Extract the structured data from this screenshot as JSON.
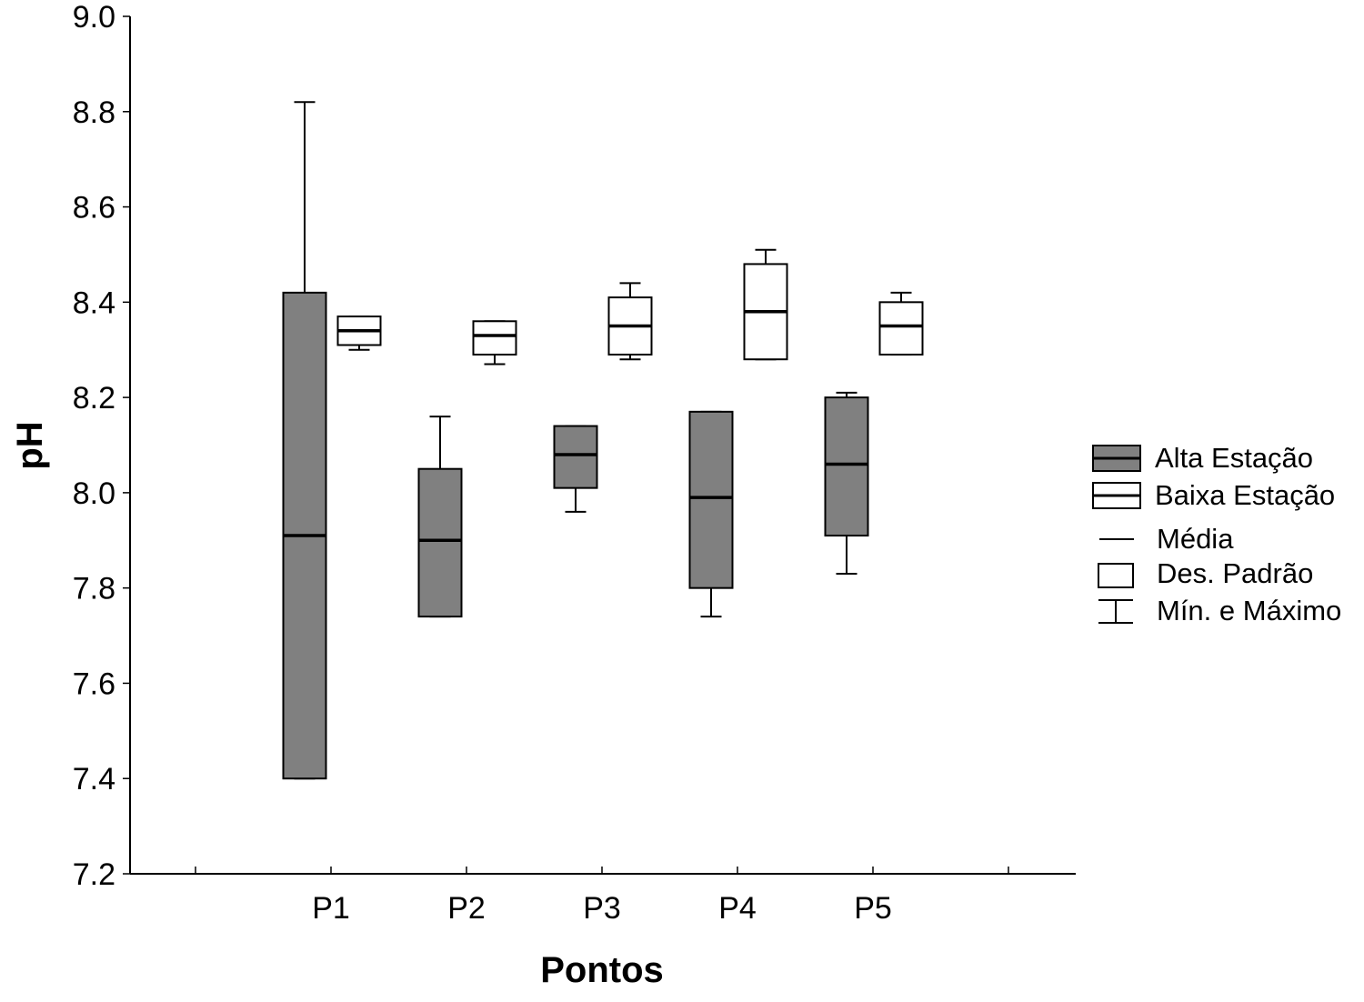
{
  "chart_data": {
    "type": "box",
    "xlabel": "Pontos",
    "ylabel": "pH",
    "ylim": [
      7.2,
      9.0
    ],
    "yticks": [
      "7.2",
      "7.4",
      "7.6",
      "7.8",
      "8.0",
      "8.2",
      "8.4",
      "8.6",
      "8.8",
      "9.0"
    ],
    "categories": [
      "P1",
      "P2",
      "P3",
      "P4",
      "P5"
    ],
    "series": [
      {
        "name": "Alta Estação",
        "color": "#808080",
        "boxes": [
          {
            "category": "P1",
            "min": 7.4,
            "sd_low": 7.4,
            "mean": 7.91,
            "sd_high": 8.42,
            "max": 8.82
          },
          {
            "category": "P2",
            "min": 7.74,
            "sd_low": 7.74,
            "mean": 7.9,
            "sd_high": 8.05,
            "max": 8.16
          },
          {
            "category": "P3",
            "min": 7.96,
            "sd_low": 8.01,
            "mean": 8.08,
            "sd_high": 8.14,
            "max": 8.14
          },
          {
            "category": "P4",
            "min": 7.74,
            "sd_low": 7.8,
            "mean": 7.99,
            "sd_high": 8.17,
            "max": 8.17
          },
          {
            "category": "P5",
            "min": 7.83,
            "sd_low": 7.91,
            "mean": 8.06,
            "sd_high": 8.2,
            "max": 8.21
          }
        ]
      },
      {
        "name": "Baixa Estação",
        "color": "#ffffff",
        "boxes": [
          {
            "category": "P1",
            "min": 8.3,
            "sd_low": 8.31,
            "mean": 8.34,
            "sd_high": 8.37,
            "max": 8.37
          },
          {
            "category": "P2",
            "min": 8.27,
            "sd_low": 8.29,
            "mean": 8.33,
            "sd_high": 8.36,
            "max": 8.36
          },
          {
            "category": "P3",
            "min": 8.28,
            "sd_low": 8.29,
            "mean": 8.35,
            "sd_high": 8.41,
            "max": 8.44
          },
          {
            "category": "P4",
            "min": 8.28,
            "sd_low": 8.28,
            "mean": 8.38,
            "sd_high": 8.48,
            "max": 8.51
          },
          {
            "category": "P5",
            "min": 8.29,
            "sd_low": 8.29,
            "mean": 8.35,
            "sd_high": 8.4,
            "max": 8.42
          }
        ]
      }
    ],
    "legend": {
      "placement": "right",
      "items": [
        "Alta Estação",
        "Baixa Estação",
        "Média",
        "Des. Padrão",
        "Mín. e Máximo"
      ]
    },
    "grid": false
  }
}
